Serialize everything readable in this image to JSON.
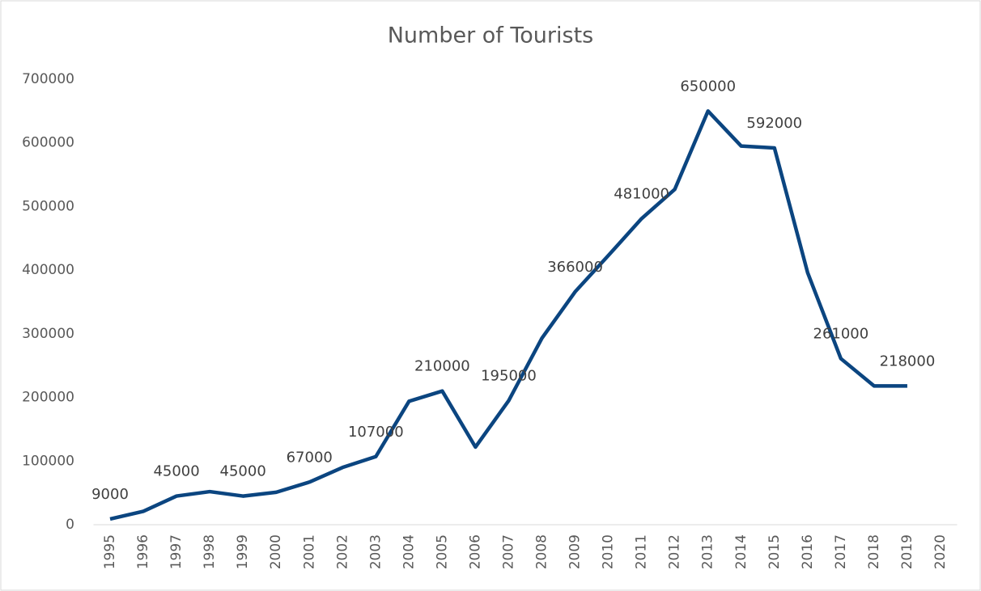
{
  "chart_data": {
    "type": "line",
    "title": "Number of Tourists",
    "categories": [
      "1995",
      "1996",
      "1997",
      "1998",
      "1999",
      "2000",
      "2001",
      "2002",
      "2003",
      "2004",
      "2005",
      "2006",
      "2007",
      "2008",
      "2009",
      "2010",
      "2011",
      "2012",
      "2013",
      "2014",
      "2015",
      "2016",
      "2017",
      "2018",
      "2019",
      "2020"
    ],
    "series": [
      {
        "name": "Number of Tourists",
        "color": "#0b4580",
        "values": [
          9000,
          21000,
          45000,
          52000,
          45000,
          51000,
          67000,
          90000,
          107000,
          194000,
          210000,
          122000,
          195000,
          293000,
          366000,
          423000,
          481000,
          527000,
          650000,
          595000,
          592000,
          396000,
          261000,
          218000,
          218000,
          null
        ],
        "value_labels": [
          "9000",
          null,
          "45000",
          null,
          "45000",
          null,
          "67000",
          null,
          "107000",
          null,
          "210000",
          null,
          "195000",
          null,
          "366000",
          null,
          "481000",
          null,
          "650000",
          null,
          "592000",
          null,
          "261000",
          null,
          "218000",
          null
        ]
      }
    ],
    "ylim": [
      0,
      700000
    ],
    "yticks": [
      0,
      100000,
      200000,
      300000,
      400000,
      500000,
      600000,
      700000
    ],
    "grid": false
  }
}
